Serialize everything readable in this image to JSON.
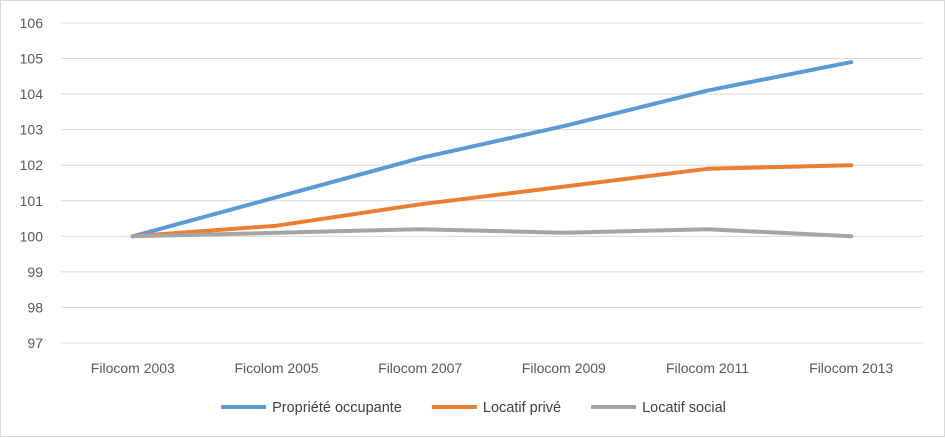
{
  "chart_data": {
    "type": "line",
    "categories": [
      "Filocom 2003",
      "Ficolom 2005",
      "Filocom 2007",
      "Filocom 2009",
      "Filocom 2011",
      "Filocom 2013"
    ],
    "series": [
      {
        "name": "Propriété occupante",
        "color": "#5B9BD5",
        "values": [
          100,
          101.1,
          102.2,
          103.1,
          104.1,
          104.9
        ]
      },
      {
        "name": "Locatif privé",
        "color": "#ED7D31",
        "values": [
          100,
          100.3,
          100.9,
          101.4,
          101.9,
          102.0
        ]
      },
      {
        "name": "Locatif social",
        "color": "#A5A5A5",
        "values": [
          100,
          100.1,
          100.2,
          100.1,
          100.2,
          100.0
        ]
      }
    ],
    "ylim": [
      97,
      106
    ],
    "yticks": [
      "97",
      "98",
      "99",
      "100",
      "101",
      "102",
      "103",
      "104",
      "105",
      "106"
    ],
    "grid": true,
    "legend": "bottom",
    "title": "",
    "xlabel": "",
    "ylabel": ""
  }
}
